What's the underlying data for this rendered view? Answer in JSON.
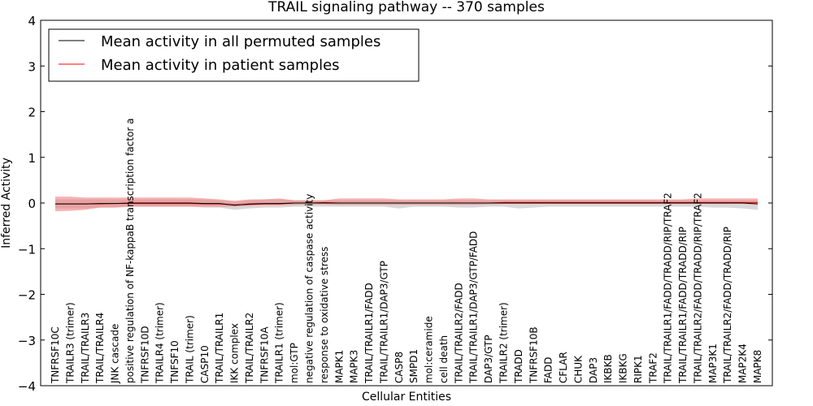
{
  "chart_data": {
    "type": "line",
    "title": "TRAIL signaling pathway -- 370 samples",
    "xlabel": "Cellular Entities",
    "ylabel": "Inferred Activity",
    "ylim": [
      -4,
      4
    ],
    "yticks": [
      -4,
      -3,
      -2,
      -1,
      0,
      1,
      2,
      3,
      4
    ],
    "legend_position": "top-left",
    "categories": [
      "TNFRSF10C",
      "TRAILR3 (trimer)",
      "TRAIL/TRAILR3",
      "TRAIL/TRAILR4",
      "JNK cascade",
      "positive regulation of NF-kappaB transcription factor activity",
      "TNFRSF10D",
      "TRAILR4 (trimer)",
      "TNFSF10",
      "TRAIL (trimer)",
      "CASP10",
      "TRAIL/TRAILR1",
      "IKK complex",
      "TRAIL/TRAILR2",
      "TNFRSF10A",
      "TRAILR1 (trimer)",
      "mol:GTP",
      "negative regulation of caspase activity",
      "response to oxidative stress",
      "MAPK1",
      "MAPK3",
      "TRAIL/TRAILR1/FADD",
      "TRAIL/TRAILR1/DAP3/GTP",
      "CASP8",
      "SMPD1",
      "mol:ceramide",
      "cell death",
      "TRAIL/TRAILR2/FADD",
      "TRAIL/TRAILR1/DAP3/GTP/FADD",
      "DAP3/GTP",
      "TRAILR2 (trimer)",
      "TRADD",
      "TNFRSF10B",
      "FADD",
      "CFLAR",
      "CHUK",
      "DAP3",
      "IKBKB",
      "IKBKG",
      "RIPK1",
      "TRAF2",
      "TRAIL/TRAILR1/FADD/TRADD/RIP/TRAF2",
      "TRAIL/TRAILR1/FADD/TRADD/RIP",
      "TRAIL/TRAILR2/FADD/TRADD/RIP/TRAF2",
      "MAP3K1",
      "TRAIL/TRAILR2/FADD/TRADD/RIP",
      "MAP2K4",
      "MAPK8"
    ],
    "label_display": [
      "TNFRSF10C",
      "TRAILR3 (trimer)",
      "TRAIL/TRAILR3",
      "TRAIL/TRAILR4",
      "JNK cascade",
      "positive regulation of NF-kappaB transcription factor a",
      "TNFRSF10D",
      "TRAILR4 (trimer)",
      "TNFSF10",
      "TRAIL (trimer)",
      "CASP10",
      "TRAIL/TRAILR1",
      "IKK complex",
      "TRAIL/TRAILR2",
      "TNFRSF10A",
      "TRAILR1 (trimer)",
      "mol:GTP",
      "negative regulation of caspase activity",
      "response to oxidative stress",
      "MAPK1",
      "MAPK3",
      "TRAIL/TRAILR1/FADD",
      "TRAIL/TRAILR1/DAP3/GTP",
      "CASP8",
      "SMPD1",
      "mol:ceramide",
      "cell death",
      "TRAIL/TRAILR2/FADD",
      "TRAIL/TRAILR1/DAP3/GTP/FADD",
      "DAP3/GTP",
      "TRAILR2 (trimer)",
      "TRADD",
      "TNFRSF10B",
      "FADD",
      "CFLAR",
      "CHUK",
      "DAP3",
      "IKBKB",
      "IKBKG",
      "RIPK1",
      "TRAF2",
      "TRAIL/TRAILR1/FADD/TRADD/RIP/TRAF2",
      "TRAIL/TRAILR1/FADD/TRADD/RIP",
      "TRAIL/TRAILR2/FADD/TRADD/RIP/TRAF2",
      "MAP3K1",
      "TRAIL/TRAILR2/FADD/TRADD/RIP",
      "MAP2K4",
      "MAPK8"
    ],
    "series": [
      {
        "name": "Mean activity in all permuted samples",
        "color": "#000000",
        "band_color": "#c8c8c8",
        "values": [
          -0.02,
          -0.02,
          -0.02,
          -0.01,
          -0.01,
          0,
          0,
          0,
          0,
          0,
          -0.01,
          -0.01,
          -0.05,
          -0.02,
          -0.01,
          -0.01,
          0,
          0,
          0,
          0,
          0,
          0,
          0,
          0,
          0,
          0,
          0,
          0,
          0,
          0,
          0,
          0,
          0,
          0,
          0,
          0,
          0,
          0,
          0,
          0,
          0,
          0,
          0,
          0,
          0,
          0,
          0,
          -0.02
        ],
        "band_low": [
          -0.12,
          -0.12,
          -0.12,
          -0.1,
          -0.1,
          -0.08,
          -0.08,
          -0.08,
          -0.08,
          -0.08,
          -0.1,
          -0.1,
          -0.15,
          -0.12,
          -0.1,
          -0.1,
          -0.08,
          -0.08,
          -0.08,
          -0.08,
          -0.08,
          -0.08,
          -0.08,
          -0.12,
          -0.08,
          -0.08,
          -0.08,
          -0.1,
          -0.1,
          -0.08,
          -0.08,
          -0.12,
          -0.1,
          -0.08,
          -0.08,
          -0.08,
          -0.08,
          -0.08,
          -0.08,
          -0.08,
          -0.08,
          -0.08,
          -0.08,
          -0.08,
          -0.1,
          -0.1,
          -0.12,
          -0.15
        ],
        "band_high": [
          0.08,
          0.08,
          0.08,
          0.08,
          0.08,
          0.08,
          0.08,
          0.08,
          0.08,
          0.08,
          0.08,
          0.06,
          0.02,
          0.06,
          0.08,
          0.08,
          0.06,
          0.06,
          0.06,
          0.06,
          0.06,
          0.06,
          0.06,
          0.06,
          0.06,
          0.06,
          0.06,
          0.06,
          0.06,
          0.06,
          0.06,
          0.06,
          0.06,
          0.06,
          0.06,
          0.06,
          0.06,
          0.06,
          0.06,
          0.06,
          0.06,
          0.06,
          0.06,
          0.06,
          0.06,
          0.06,
          0.06,
          0.06
        ]
      },
      {
        "name": "Mean activity in patient samples",
        "color": "#ff0000",
        "band_color": "#f08080",
        "values": [
          -0.02,
          -0.02,
          -0.02,
          -0.02,
          -0.01,
          -0.01,
          -0.01,
          -0.01,
          -0.01,
          -0.01,
          -0.02,
          -0.02,
          -0.04,
          -0.03,
          -0.02,
          -0.02,
          0,
          0,
          0.01,
          0,
          0,
          0,
          0,
          0,
          0,
          0,
          0,
          0,
          0,
          0,
          0.01,
          0.01,
          0.01,
          0.01,
          0.01,
          0.01,
          0.01,
          0.01,
          0.01,
          0.01,
          0.01,
          0.01,
          0.01,
          0.01,
          0.01,
          0.01,
          0.01,
          0.01
        ],
        "band_low": [
          -0.18,
          -0.17,
          -0.15,
          -0.1,
          -0.1,
          -0.08,
          -0.08,
          -0.08,
          -0.08,
          -0.08,
          -0.08,
          -0.08,
          -0.08,
          -0.06,
          -0.05,
          -0.05,
          -0.04,
          -0.03,
          -0.03,
          -0.04,
          -0.04,
          -0.04,
          -0.04,
          -0.04,
          -0.04,
          -0.04,
          -0.04,
          -0.04,
          -0.04,
          -0.03,
          -0.02,
          -0.02,
          -0.02,
          -0.02,
          -0.02,
          -0.02,
          -0.02,
          -0.02,
          -0.02,
          -0.02,
          -0.02,
          -0.02,
          -0.02,
          -0.02,
          -0.02,
          -0.02,
          -0.02,
          -0.03
        ],
        "band_high": [
          0.14,
          0.14,
          0.12,
          0.12,
          0.12,
          0.12,
          0.12,
          0.12,
          0.12,
          0.12,
          0.1,
          0.08,
          0.05,
          0.08,
          0.08,
          0.1,
          0.06,
          0.06,
          0.06,
          0.1,
          0.1,
          0.1,
          0.1,
          0.08,
          0.08,
          0.08,
          0.08,
          0.1,
          0.1,
          0.08,
          0.08,
          0.08,
          0.08,
          0.08,
          0.08,
          0.08,
          0.08,
          0.08,
          0.08,
          0.08,
          0.08,
          0.08,
          0.08,
          0.1,
          0.1,
          0.1,
          0.1,
          0.1
        ]
      }
    ]
  }
}
